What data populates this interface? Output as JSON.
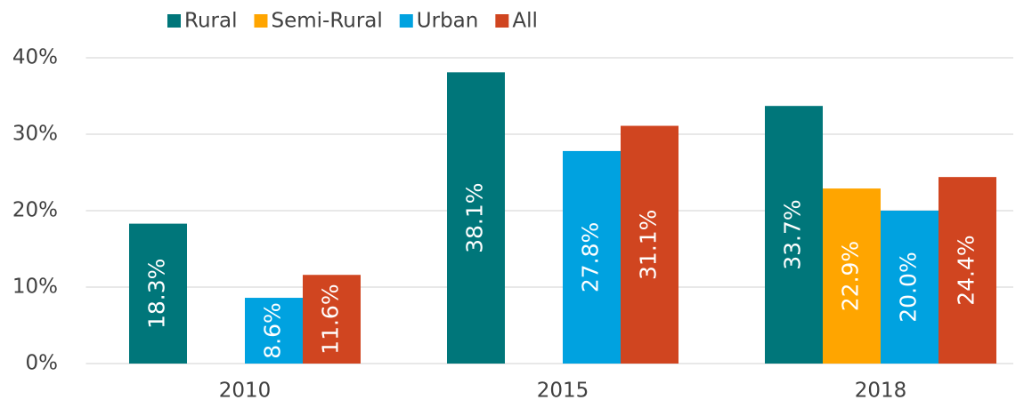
{
  "chart_data": {
    "type": "bar",
    "categories": [
      "2010",
      "2015",
      "2018"
    ],
    "series": [
      {
        "name": "Rural",
        "color": "#00767a",
        "values": [
          18.3,
          38.1,
          33.7
        ],
        "value_labels": [
          "18.3%",
          "38.1%",
          "33.7%"
        ]
      },
      {
        "name": "Semi-Rural",
        "color": "#ffa500",
        "values": [
          null,
          null,
          22.9
        ],
        "value_labels": [
          null,
          null,
          "22.9%"
        ]
      },
      {
        "name": "Urban",
        "color": "#00a2e0",
        "values": [
          8.6,
          27.8,
          20.0
        ],
        "value_labels": [
          "8.6%",
          "27.8%",
          "20.0%"
        ]
      },
      {
        "name": "All",
        "color": "#d04520",
        "values": [
          11.6,
          31.1,
          24.4
        ],
        "value_labels": [
          "11.6%",
          "31.1%",
          "24.4%"
        ]
      }
    ],
    "ylim": [
      0,
      40
    ],
    "yticks": [
      {
        "value": 0,
        "label": "0%"
      },
      {
        "value": 10,
        "label": "10%"
      },
      {
        "value": 20,
        "label": "20%"
      },
      {
        "value": 30,
        "label": "30%"
      },
      {
        "value": 40,
        "label": "40%"
      }
    ],
    "grid": true,
    "legend": "top"
  }
}
